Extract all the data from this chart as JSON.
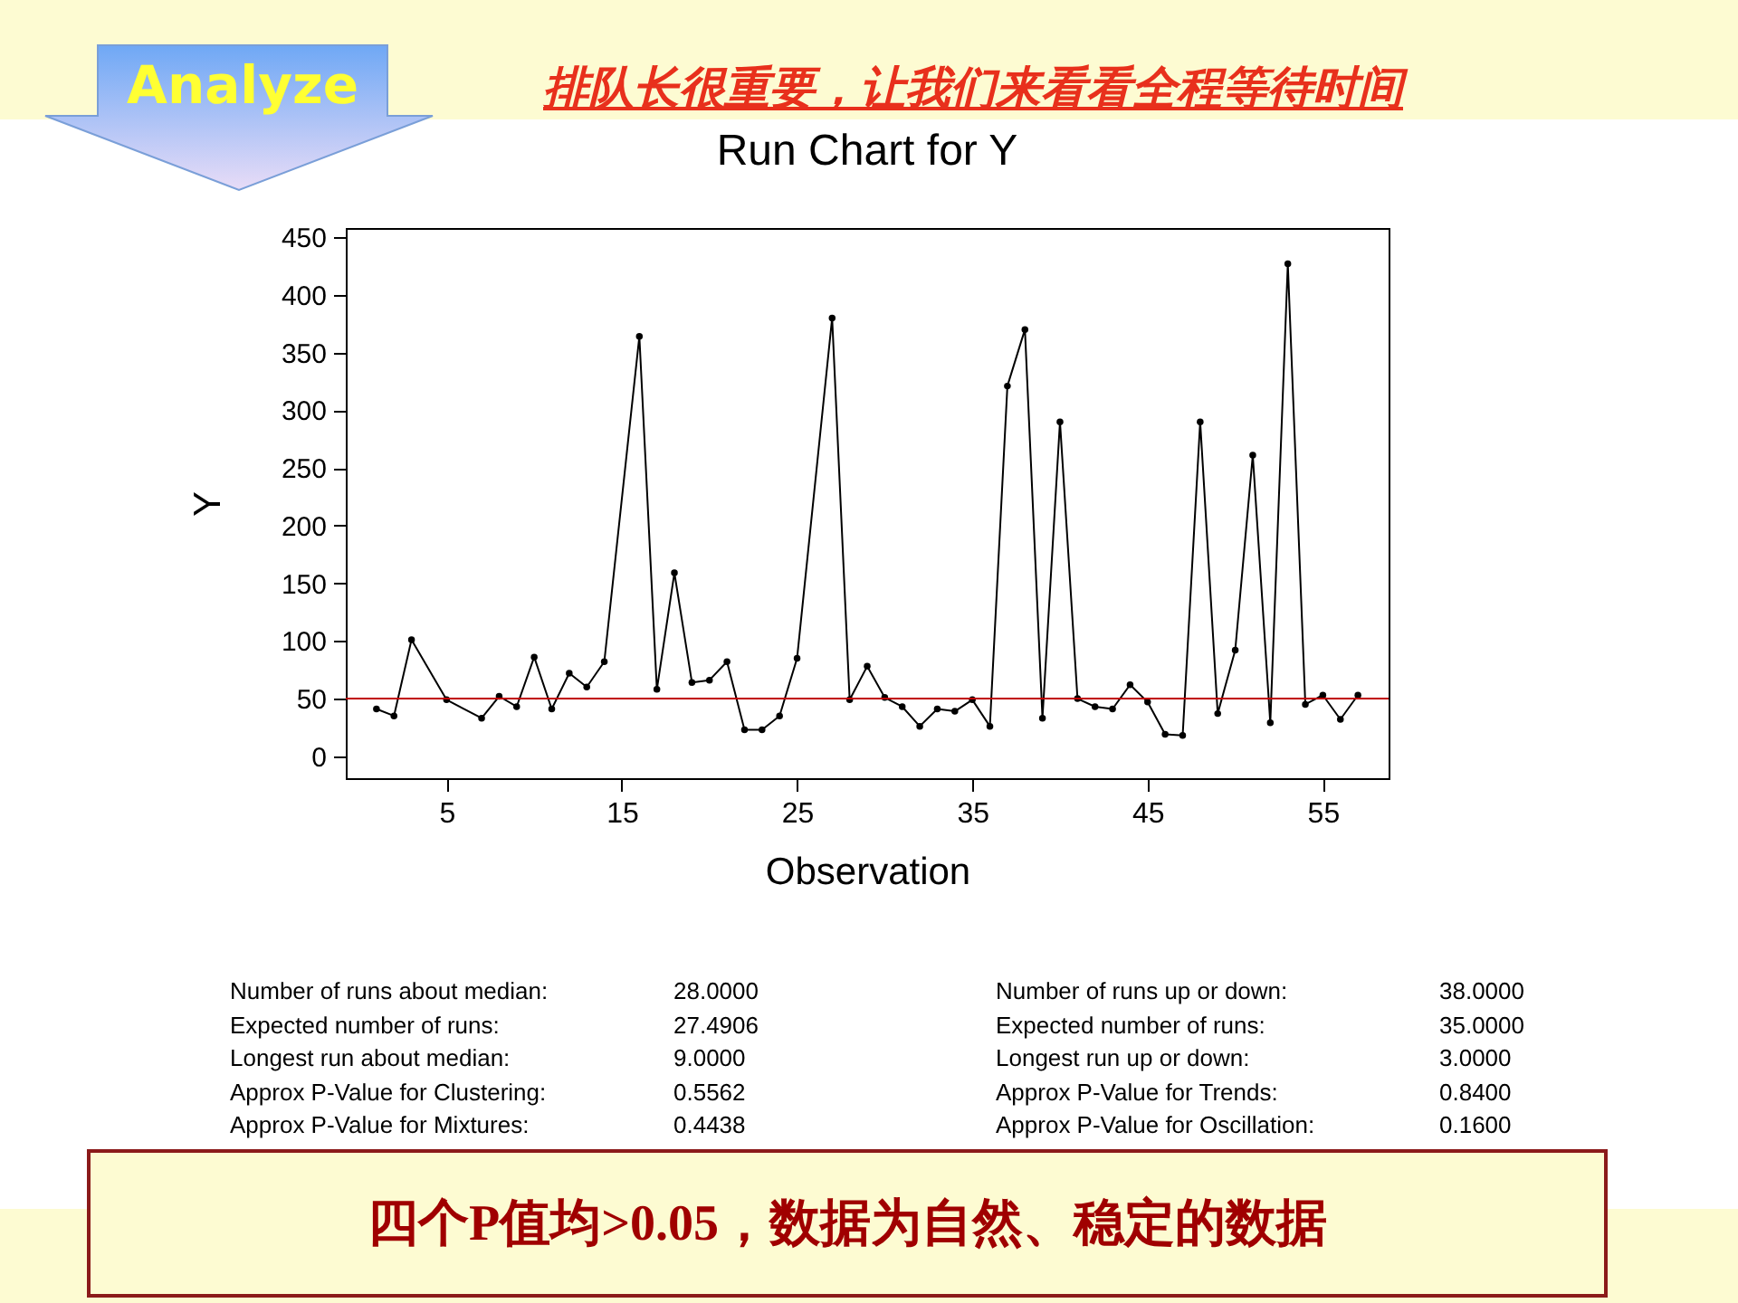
{
  "chart_data": {
    "type": "line",
    "title": "Run Chart for Y",
    "xlabel": "Observation",
    "ylabel": "Y",
    "x": [
      1,
      2,
      3,
      5,
      7,
      8,
      9,
      10,
      11,
      12,
      13,
      14,
      16,
      17,
      18,
      19,
      20,
      21,
      22,
      23,
      24,
      25,
      27,
      28,
      29,
      30,
      31,
      32,
      33,
      34,
      35,
      36,
      37,
      38,
      39,
      40,
      41,
      42,
      43,
      44,
      45,
      46,
      47,
      48,
      49,
      50,
      51,
      52,
      53,
      54,
      55,
      56,
      57
    ],
    "series": [
      {
        "color": "#000000",
        "values": [
          41,
          35,
          101,
          49,
          33,
          52,
          43,
          86,
          41,
          72,
          60,
          82,
          364,
          58,
          159,
          64,
          66,
          82,
          23,
          23,
          35,
          85,
          380,
          49,
          78,
          51,
          43,
          26,
          41,
          39,
          49,
          26,
          321,
          370,
          33,
          290,
          50,
          43,
          41,
          62,
          47,
          19,
          18,
          290,
          37,
          92,
          261,
          29,
          427,
          45,
          53,
          32,
          53
        ]
      }
    ],
    "xlim": [
      -0.75,
      58.75
    ],
    "xticks": [
      5,
      15,
      25,
      35,
      45,
      55
    ],
    "ylim": [
      -19,
      458
    ],
    "yticks": [
      0,
      50,
      100,
      150,
      200,
      250,
      300,
      350,
      400,
      450
    ],
    "grid": false,
    "marker": "circle",
    "line_style": "solid",
    "ref_lines": [
      {
        "axis": "y",
        "value": 50,
        "color": "#c00000"
      }
    ],
    "annotations": [
      "Analyze",
      "排队长很重要，让我们来看看全程等待时间",
      "Number of runs about median:",
      "28.0000",
      "Number of runs up or down:",
      "38.0000",
      "Expected number of runs:",
      "27.4906",
      "Expected number of runs:",
      "35.0000",
      "Longest run about median:",
      "9.0000",
      "Longest run up or down:",
      "3.0000",
      "Approx P-Value for Clustering:",
      "0.5562",
      "Approx P-Value for Trends:",
      "0.8400",
      "Approx P-Value for Mixtures:",
      "0.4438",
      "Approx P-Value for Oscillation:",
      "0.1600",
      "四个P值均>0.05，数据为自然、稳定的数据"
    ]
  }
}
